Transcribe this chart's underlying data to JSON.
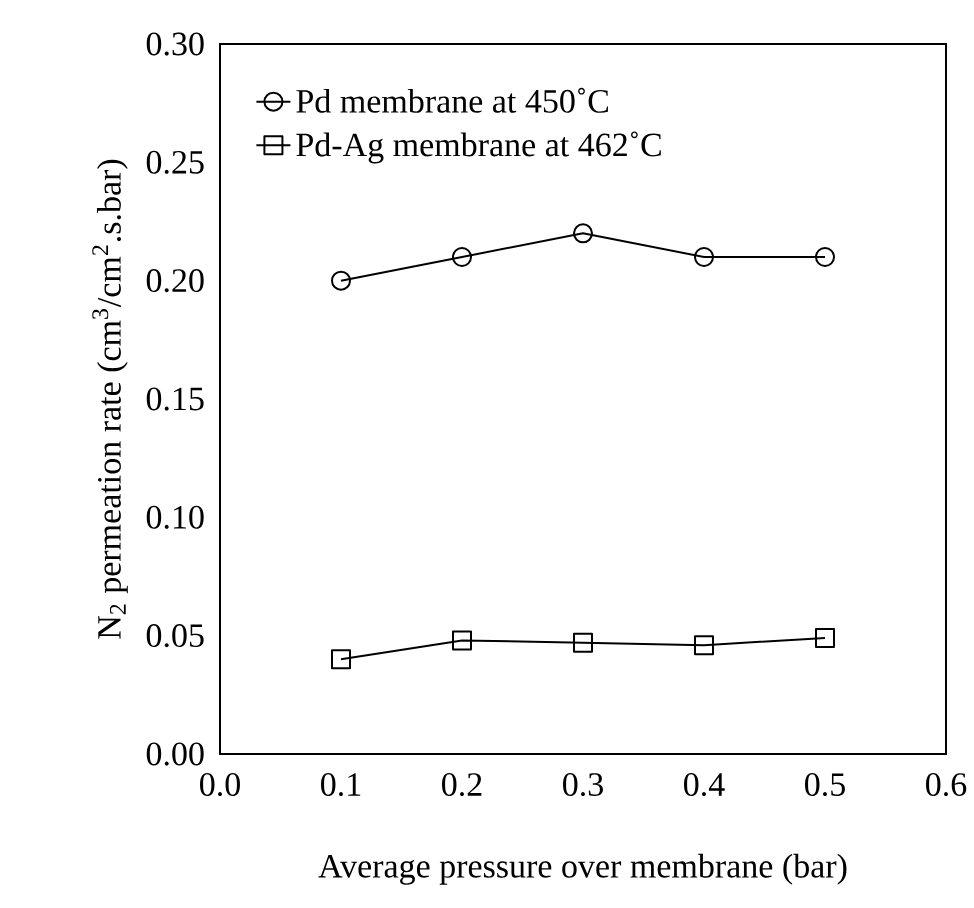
{
  "chart_data": {
    "type": "line",
    "xlabel": "Average pressure over membrane (bar)",
    "ylabel": "N$_{2}$ permeation rate (cm$^{3}$/cm$^{2}$.s.bar)",
    "xlim": [
      0.0,
      0.6
    ],
    "xticks": [
      {
        "value": 0.0,
        "label": "0.0"
      },
      {
        "value": 0.1,
        "label": "0.1"
      },
      {
        "value": 0.2,
        "label": "0.2"
      },
      {
        "value": 0.3,
        "label": "0.3"
      },
      {
        "value": 0.4,
        "label": "0.4"
      },
      {
        "value": 0.5,
        "label": "0.5"
      },
      {
        "value": 0.6,
        "label": "0.6"
      }
    ],
    "ylim": [
      0.0,
      0.3
    ],
    "yticks": [
      {
        "value": 0.0,
        "label": "0.00"
      },
      {
        "value": 0.05,
        "label": "0.05"
      },
      {
        "value": 0.1,
        "label": "0.10"
      },
      {
        "value": 0.15,
        "label": "0.15"
      },
      {
        "value": 0.2,
        "label": "0.20"
      },
      {
        "value": 0.25,
        "label": "0.25"
      },
      {
        "value": 0.3,
        "label": "0.30"
      }
    ],
    "x": [
      0.1,
      0.2,
      0.3,
      0.4,
      0.5
    ],
    "series": [
      {
        "name": "Pd membrane at 450˚C",
        "color": "#000000",
        "marker": "circle",
        "values": [
          0.2,
          0.21,
          0.22,
          0.21,
          0.21
        ]
      },
      {
        "name": "Pd-Ag membrane at 462˚C",
        "color": "#000000",
        "marker": "square",
        "values": [
          0.04,
          0.048,
          0.047,
          0.046,
          0.049
        ]
      }
    ],
    "legend": "top left",
    "grid": false,
    "line_style": "solid"
  }
}
